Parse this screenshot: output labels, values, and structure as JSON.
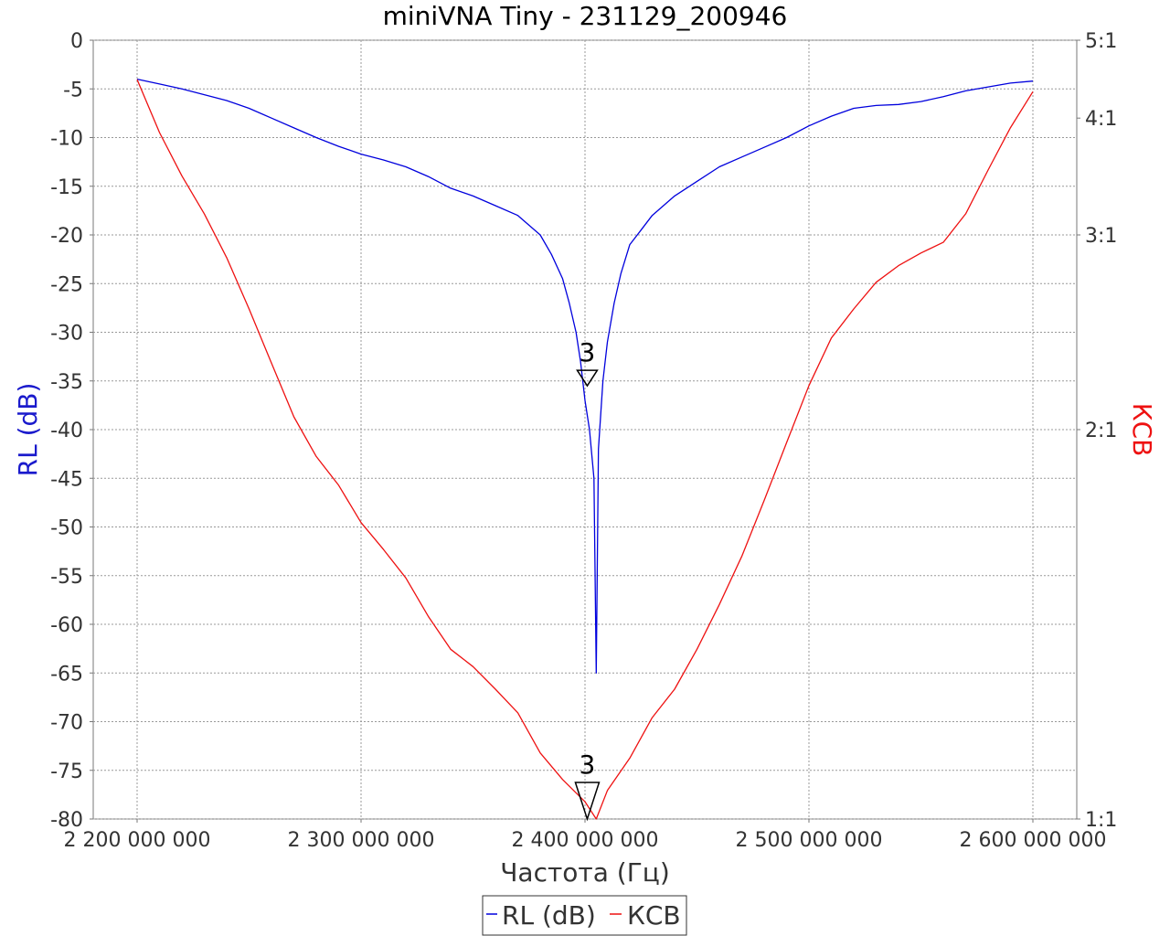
{
  "chart_data": {
    "type": "line",
    "title": "miniVNA Tiny - 231129_200946",
    "xlabel": "Частота (Гц)",
    "ylabel_left": "RL (dB)",
    "ylabel_right": "КСВ",
    "xlim": [
      2200000000,
      2600000000
    ],
    "ylim_left": [
      -80,
      0
    ],
    "x_ticks": [
      "2 200 000 000",
      "2 300 000 000",
      "2 400 000 000",
      "2 500 000 000",
      "2 600 000 000"
    ],
    "y_ticks_left": [
      "0",
      "-5",
      "-10",
      "-15",
      "-20",
      "-25",
      "-30",
      "-35",
      "-40",
      "-45",
      "-50",
      "-55",
      "-60",
      "-65",
      "-70",
      "-75",
      "-80"
    ],
    "y_ticks_right": [
      {
        "label": "5:1",
        "swr": 5
      },
      {
        "label": "4:1",
        "swr": 4
      },
      {
        "label": "3:1",
        "swr": 3
      },
      {
        "label": "2:1",
        "swr": 2
      },
      {
        "label": "1:1",
        "swr": 1
      }
    ],
    "grid": true,
    "legend_position": "bottom-center",
    "series": [
      {
        "name": "RL (dB)",
        "color": "#0000dd",
        "axis": "left",
        "points": [
          [
            2200000000,
            -4.0
          ],
          [
            2210000000,
            -4.5
          ],
          [
            2220000000,
            -5.0
          ],
          [
            2230000000,
            -5.6
          ],
          [
            2240000000,
            -6.2
          ],
          [
            2250000000,
            -7.0
          ],
          [
            2260000000,
            -8.0
          ],
          [
            2270000000,
            -9.0
          ],
          [
            2280000000,
            -10.0
          ],
          [
            2290000000,
            -10.9
          ],
          [
            2300000000,
            -11.7
          ],
          [
            2310000000,
            -12.3
          ],
          [
            2320000000,
            -13.0
          ],
          [
            2330000000,
            -14.0
          ],
          [
            2340000000,
            -15.2
          ],
          [
            2350000000,
            -16.0
          ],
          [
            2360000000,
            -17.0
          ],
          [
            2370000000,
            -18.0
          ],
          [
            2380000000,
            -20.0
          ],
          [
            2385000000,
            -22.0
          ],
          [
            2390000000,
            -24.5
          ],
          [
            2393000000,
            -27.0
          ],
          [
            2396000000,
            -30.0
          ],
          [
            2398000000,
            -33.0
          ],
          [
            2400000000,
            -37.0
          ],
          [
            2402000000,
            -40.0
          ],
          [
            2404000000,
            -45.0
          ],
          [
            2405000000,
            -65.0
          ],
          [
            2406000000,
            -42.0
          ],
          [
            2408000000,
            -35.0
          ],
          [
            2410000000,
            -31.0
          ],
          [
            2413000000,
            -27.0
          ],
          [
            2416000000,
            -24.0
          ],
          [
            2420000000,
            -21.0
          ],
          [
            2425000000,
            -19.5
          ],
          [
            2430000000,
            -18.0
          ],
          [
            2440000000,
            -16.0
          ],
          [
            2450000000,
            -14.5
          ],
          [
            2460000000,
            -13.0
          ],
          [
            2470000000,
            -12.0
          ],
          [
            2480000000,
            -11.0
          ],
          [
            2490000000,
            -10.0
          ],
          [
            2500000000,
            -8.8
          ],
          [
            2510000000,
            -7.8
          ],
          [
            2520000000,
            -7.0
          ],
          [
            2530000000,
            -6.7
          ],
          [
            2540000000,
            -6.6
          ],
          [
            2550000000,
            -6.3
          ],
          [
            2560000000,
            -5.8
          ],
          [
            2570000000,
            -5.2
          ],
          [
            2580000000,
            -4.8
          ],
          [
            2590000000,
            -4.4
          ],
          [
            2600000000,
            -4.2
          ]
        ]
      },
      {
        "name": "КСВ",
        "color": "#ee1111",
        "axis": "right",
        "points": [
          [
            2200000000,
            4.45
          ],
          [
            2210000000,
            3.85
          ],
          [
            2220000000,
            3.45
          ],
          [
            2230000000,
            3.15
          ],
          [
            2240000000,
            2.85
          ],
          [
            2250000000,
            2.55
          ],
          [
            2260000000,
            2.28
          ],
          [
            2270000000,
            2.05
          ],
          [
            2280000000,
            1.9
          ],
          [
            2290000000,
            1.8
          ],
          [
            2300000000,
            1.68
          ],
          [
            2310000000,
            1.6
          ],
          [
            2320000000,
            1.52
          ],
          [
            2330000000,
            1.42
          ],
          [
            2340000000,
            1.34
          ],
          [
            2350000000,
            1.3
          ],
          [
            2360000000,
            1.25
          ],
          [
            2370000000,
            1.2
          ],
          [
            2380000000,
            1.12
          ],
          [
            2390000000,
            1.07
          ],
          [
            2400000000,
            1.03
          ],
          [
            2405000000,
            1.0
          ],
          [
            2410000000,
            1.05
          ],
          [
            2420000000,
            1.11
          ],
          [
            2430000000,
            1.19
          ],
          [
            2440000000,
            1.25
          ],
          [
            2450000000,
            1.34
          ],
          [
            2460000000,
            1.45
          ],
          [
            2470000000,
            1.58
          ],
          [
            2480000000,
            1.75
          ],
          [
            2490000000,
            1.95
          ],
          [
            2500000000,
            2.18
          ],
          [
            2510000000,
            2.4
          ],
          [
            2520000000,
            2.55
          ],
          [
            2530000000,
            2.7
          ],
          [
            2540000000,
            2.8
          ],
          [
            2550000000,
            2.88
          ],
          [
            2560000000,
            2.95
          ],
          [
            2570000000,
            3.15
          ],
          [
            2580000000,
            3.5
          ],
          [
            2590000000,
            3.9
          ],
          [
            2600000000,
            4.3
          ]
        ]
      }
    ],
    "markers": [
      {
        "label": "3",
        "x": 2401000000,
        "axis": "left",
        "value": -35.5
      },
      {
        "label": "3",
        "x": 2401000000,
        "axis": "right",
        "value": 1.0
      }
    ]
  }
}
